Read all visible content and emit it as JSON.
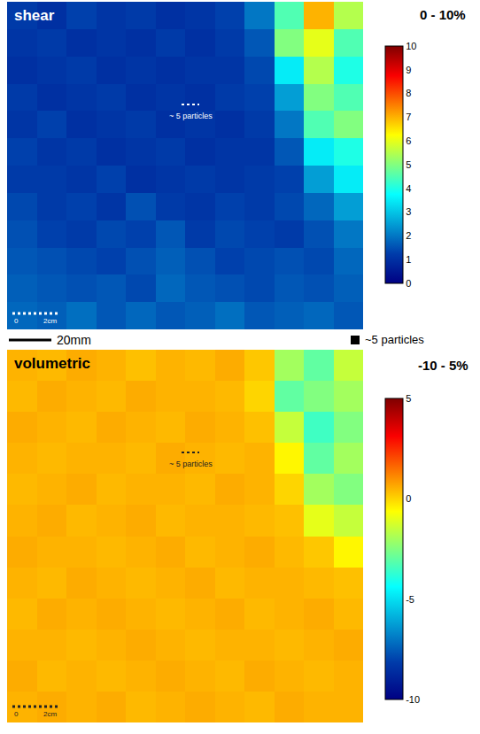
{
  "chart_data": [
    {
      "type": "heatmap",
      "title": "shear",
      "range_label": "0 - 10%",
      "annotations": [
        "~ 5 particles",
        "0",
        "2cm"
      ],
      "tick_labels": false,
      "colorbar": {
        "range": [
          0,
          10
        ],
        "ticks": [
          0,
          1,
          2,
          3,
          4,
          5,
          6,
          7,
          8,
          9,
          10
        ]
      },
      "cells": [
        [
          1.2,
          1.0,
          1.3,
          1.1,
          1.2,
          1.0,
          1.1,
          1.3,
          2.0,
          4.5,
          7.0,
          5.5
        ],
        [
          1.1,
          1.2,
          1.0,
          1.1,
          1.0,
          1.2,
          1.0,
          1.2,
          1.6,
          5.0,
          6.0,
          4.5
        ],
        [
          1.0,
          1.1,
          1.2,
          1.0,
          1.1,
          1.0,
          1.1,
          1.1,
          1.4,
          3.5,
          5.5,
          4.0
        ],
        [
          1.2,
          1.0,
          1.1,
          1.2,
          1.0,
          1.1,
          1.0,
          1.2,
          1.3,
          2.5,
          5.0,
          4.5
        ],
        [
          1.1,
          1.3,
          1.0,
          1.1,
          1.2,
          1.0,
          1.1,
          1.0,
          1.2,
          2.0,
          4.5,
          5.0
        ],
        [
          1.3,
          1.1,
          1.2,
          1.0,
          1.1,
          1.2,
          1.0,
          1.1,
          1.1,
          1.6,
          3.5,
          4.0
        ],
        [
          1.2,
          1.2,
          1.1,
          1.3,
          1.0,
          1.1,
          1.2,
          1.1,
          1.2,
          1.3,
          2.5,
          3.5
        ],
        [
          1.4,
          1.2,
          1.3,
          1.1,
          1.5,
          1.2,
          1.1,
          1.3,
          1.2,
          1.4,
          1.8,
          2.5
        ],
        [
          1.5,
          1.3,
          1.2,
          1.4,
          1.3,
          1.6,
          1.2,
          1.4,
          1.3,
          1.2,
          1.5,
          2.0
        ],
        [
          1.6,
          1.5,
          1.4,
          1.3,
          1.5,
          1.7,
          1.5,
          1.3,
          1.4,
          1.5,
          1.4,
          1.8
        ],
        [
          1.7,
          1.6,
          1.5,
          1.6,
          1.4,
          1.8,
          1.6,
          1.5,
          1.4,
          1.6,
          1.5,
          1.7
        ],
        [
          1.8,
          1.7,
          1.9,
          1.6,
          1.8,
          1.6,
          1.7,
          1.9,
          1.6,
          1.7,
          1.8,
          1.6
        ]
      ]
    },
    {
      "type": "heatmap",
      "title": "volumetric",
      "range_label": "-10 - 5%",
      "annotations": [
        "~ 5 particles",
        "0",
        "2cm"
      ],
      "tick_labels": false,
      "colorbar": {
        "range": [
          -10,
          5
        ],
        "ticks": [
          -10,
          -5,
          0,
          5
        ]
      },
      "cells": [
        [
          0.5,
          0.4,
          0.6,
          0.5,
          0.3,
          0.5,
          0.4,
          0.6,
          0.2,
          -2.0,
          -3.0,
          -1.5
        ],
        [
          0.4,
          0.6,
          0.5,
          0.4,
          0.6,
          0.5,
          0.5,
          0.4,
          0.0,
          -3.0,
          -2.5,
          -2.0
        ],
        [
          0.6,
          0.5,
          0.4,
          0.6,
          0.5,
          0.4,
          0.6,
          0.5,
          0.3,
          -1.5,
          -3.5,
          -2.5
        ],
        [
          0.5,
          0.4,
          0.5,
          0.5,
          0.4,
          0.6,
          0.5,
          0.4,
          0.5,
          -0.5,
          -3.0,
          -2.0
        ],
        [
          0.4,
          0.5,
          0.6,
          0.4,
          0.5,
          0.5,
          0.4,
          0.6,
          0.5,
          0.0,
          -2.0,
          -2.5
        ],
        [
          0.5,
          0.6,
          0.4,
          0.5,
          0.6,
          0.4,
          0.5,
          0.5,
          0.4,
          0.3,
          -1.0,
          -1.5
        ],
        [
          0.6,
          0.5,
          0.5,
          0.4,
          0.5,
          0.6,
          0.4,
          0.5,
          0.6,
          0.4,
          0.2,
          -0.5
        ],
        [
          0.5,
          0.4,
          0.6,
          0.5,
          0.4,
          0.5,
          0.6,
          0.4,
          0.5,
          0.5,
          0.4,
          0.3
        ],
        [
          0.4,
          0.6,
          0.5,
          0.6,
          0.5,
          0.4,
          0.5,
          0.6,
          0.4,
          0.5,
          0.6,
          0.4
        ],
        [
          0.5,
          0.5,
          0.4,
          0.5,
          0.6,
          0.5,
          0.4,
          0.5,
          0.5,
          0.4,
          0.5,
          0.6
        ],
        [
          0.6,
          0.4,
          0.5,
          0.4,
          0.5,
          0.6,
          0.5,
          0.4,
          0.6,
          0.5,
          0.4,
          0.5
        ],
        [
          0.5,
          0.6,
          0.5,
          0.6,
          0.4,
          0.5,
          0.6,
          0.5,
          0.4,
          0.6,
          0.5,
          0.5
        ]
      ]
    }
  ],
  "figure_notes": {
    "scale_bar": "20mm",
    "marker": "~5 particles"
  }
}
